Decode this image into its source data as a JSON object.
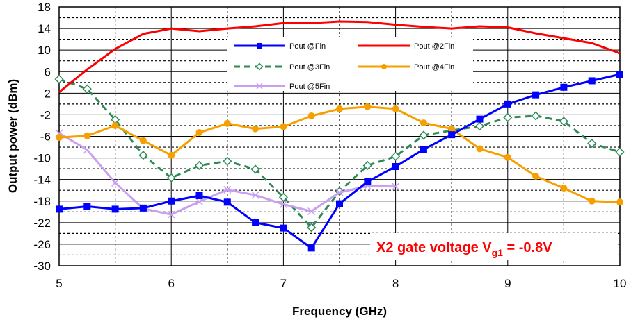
{
  "chart_data": {
    "type": "line",
    "xlabel": "Frequency (GHz)",
    "ylabel": "Output power (dBm)",
    "xlim": [
      5,
      10
    ],
    "ylim": [
      -30,
      18
    ],
    "xticks": [
      "5",
      "6",
      "7",
      "8",
      "9",
      "10"
    ],
    "yticks": [
      "-30",
      "-26",
      "-22",
      "-18",
      "-14",
      "-10",
      "-6",
      "-2",
      "2",
      "6",
      "10",
      "14",
      "18"
    ],
    "grid": true,
    "legend_position": "top-center",
    "annotation": {
      "prefix": "X2 gate voltage V",
      "subscript": "g1",
      "suffix": " = -0.8V",
      "color": "#ff0000"
    },
    "series": [
      {
        "name": "Pout @Fin",
        "color": "#0000ff",
        "style": "solid",
        "marker": "square",
        "x": [
          5,
          5.25,
          5.5,
          5.75,
          6,
          6.25,
          6.5,
          6.75,
          7,
          7.25,
          7.5,
          7.75,
          8,
          8.25,
          8.5,
          8.75,
          9,
          9.25,
          9.5,
          9.75,
          10
        ],
        "y": [
          -19.5,
          -19,
          -19.5,
          -19.3,
          -18,
          -17,
          -18.2,
          -22,
          -23,
          -26.7,
          -18.5,
          -14.4,
          -11.6,
          -8.4,
          -5.7,
          -2.8,
          0,
          1.7,
          3.1,
          4.3,
          5.5
        ]
      },
      {
        "name": "Pout @2Fin",
        "color": "#ff0000",
        "style": "solid",
        "marker": "none",
        "x": [
          5,
          5.25,
          5.5,
          5.75,
          6,
          6.25,
          6.5,
          6.75,
          7,
          7.25,
          7.5,
          7.75,
          8,
          8.25,
          8.5,
          8.75,
          9,
          9.25,
          9.5,
          9.75,
          10
        ],
        "y": [
          2.2,
          6.4,
          10.2,
          13,
          14,
          13.5,
          14,
          14.4,
          15,
          15,
          15.3,
          15.2,
          14.7,
          14.3,
          14,
          14.4,
          14.2,
          13.1,
          12.2,
          11.3,
          9.4
        ]
      },
      {
        "name": "Pout @3Fin",
        "color": "#2e8b57",
        "style": "dashed",
        "marker": "diamond-open",
        "x": [
          5,
          5.25,
          5.5,
          5.75,
          6,
          6.25,
          6.5,
          6.75,
          7,
          7.25,
          7.5,
          7.75,
          8,
          8.25,
          8.5,
          8.75,
          9,
          9.25,
          9.5,
          9.75,
          10
        ],
        "y": [
          4.6,
          2.8,
          -2.9,
          -9.5,
          -13.7,
          -11.4,
          -10.6,
          -12.1,
          -17.3,
          -22.9,
          -16.2,
          -11.4,
          -9.7,
          -5.8,
          -4.9,
          -4.1,
          -2.5,
          -2.2,
          -3.2,
          -7.3,
          -8.9
        ]
      },
      {
        "name": "Pout @4Fin",
        "color": "#f5a000",
        "style": "solid",
        "marker": "circle",
        "x": [
          5,
          5.25,
          5.5,
          5.75,
          6,
          6.25,
          6.5,
          6.75,
          7,
          7.25,
          7.5,
          7.75,
          8,
          8.25,
          8.5,
          8.75,
          9,
          9.25,
          9.5,
          9.75,
          10
        ],
        "y": [
          -6.2,
          -5.9,
          -4,
          -6.8,
          -9.5,
          -5.3,
          -3.6,
          -4.6,
          -4.2,
          -2.2,
          -0.9,
          -0.5,
          -0.9,
          -3.5,
          -4.6,
          -8.3,
          -9.9,
          -13.4,
          -15.6,
          -18,
          -18.2
        ]
      },
      {
        "name": "Pout @5Fin",
        "color": "#c9a0f0",
        "style": "solid",
        "marker": "x",
        "x": [
          5,
          5.25,
          5.5,
          5.75,
          6,
          6.25,
          6.5,
          6.75,
          7,
          7.25,
          7.5,
          7.75,
          8
        ],
        "y": [
          -5.4,
          -8.5,
          -14.6,
          -19.4,
          -20.5,
          -18.1,
          -15.9,
          -16.9,
          -18.6,
          -19.9,
          -16.4,
          -15.2,
          -15.3
        ]
      }
    ]
  }
}
